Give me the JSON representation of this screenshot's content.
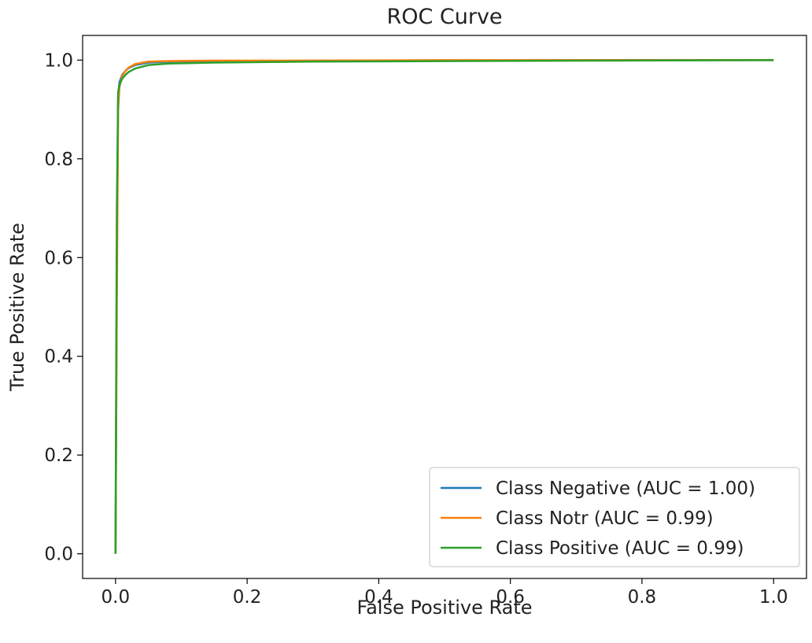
{
  "chart_data": {
    "type": "line",
    "title": "ROC Curve",
    "xlabel": "False Positive Rate",
    "ylabel": "True Positive Rate",
    "xlim": [
      -0.05,
      1.05
    ],
    "ylim": [
      -0.05,
      1.05
    ],
    "xticks": [
      0.0,
      0.2,
      0.4,
      0.6,
      0.8,
      1.0
    ],
    "yticks": [
      0.0,
      0.2,
      0.4,
      0.6,
      0.8,
      1.0
    ],
    "xtick_labels": [
      "0.0",
      "0.2",
      "0.4",
      "0.6",
      "0.8",
      "1.0"
    ],
    "ytick_labels": [
      "0.0",
      "0.2",
      "0.4",
      "0.6",
      "0.8",
      "1.0"
    ],
    "grid": false,
    "legend_position": "lower-right",
    "series": [
      {
        "name": "Class Negative (AUC = 1.00)",
        "color": "#1f77b4",
        "x": [
          0.0,
          0.002,
          0.004,
          0.006,
          0.01,
          0.015,
          0.02,
          0.03,
          0.05,
          0.08,
          0.15,
          0.3,
          0.5,
          0.75,
          1.0
        ],
        "y": [
          0.0,
          0.6,
          0.93,
          0.955,
          0.97,
          0.978,
          0.984,
          0.99,
          0.995,
          0.997,
          0.998,
          0.999,
          0.999,
          1.0,
          1.0
        ]
      },
      {
        "name": "Class Notr (AUC = 0.99)",
        "color": "#ff7f0e",
        "x": [
          0.0,
          0.002,
          0.004,
          0.006,
          0.01,
          0.015,
          0.02,
          0.03,
          0.05,
          0.08,
          0.15,
          0.3,
          0.5,
          0.75,
          1.0
        ],
        "y": [
          0.0,
          0.5,
          0.9,
          0.945,
          0.968,
          0.978,
          0.985,
          0.992,
          0.997,
          0.998,
          0.999,
          0.999,
          1.0,
          1.0,
          1.0
        ]
      },
      {
        "name": "Class Positive (AUC = 0.99)",
        "color": "#2ca02c",
        "x": [
          0.0,
          0.002,
          0.004,
          0.006,
          0.01,
          0.015,
          0.02,
          0.03,
          0.05,
          0.08,
          0.15,
          0.3,
          0.5,
          0.75,
          1.0
        ],
        "y": [
          0.0,
          0.7,
          0.935,
          0.95,
          0.962,
          0.97,
          0.976,
          0.983,
          0.99,
          0.993,
          0.995,
          0.997,
          0.998,
          0.999,
          1.0
        ]
      }
    ]
  }
}
